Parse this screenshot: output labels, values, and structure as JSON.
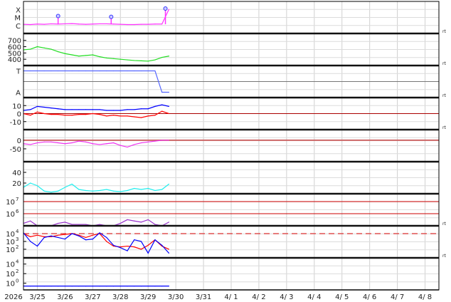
{
  "chart_data": {
    "type": "line",
    "year_label": "2026",
    "x_ticks": [
      "3/25",
      "3/26",
      "3/27",
      "3/28",
      "3/29",
      "3/30",
      "3/31",
      "4/ 1",
      "4/ 2",
      "4/ 3",
      "4/ 4",
      "4/ 5",
      "4/ 6",
      "4/ 7",
      "4/ 8"
    ],
    "x_range": [
      "2026-03-24T12",
      "2026-04-08T12"
    ],
    "grid": true,
    "times": [
      "2026-03-24T12",
      "2026-03-24T18",
      "2026-03-25T00",
      "2026-03-25T06",
      "2026-03-25T12",
      "2026-03-25T18",
      "2026-03-26T00",
      "2026-03-26T06",
      "2026-03-26T12",
      "2026-03-26T18",
      "2026-03-27T00",
      "2026-03-27T06",
      "2026-03-27T12",
      "2026-03-27T18",
      "2026-03-28T00",
      "2026-03-28T06",
      "2026-03-28T12",
      "2026-03-28T18",
      "2026-03-29T00",
      "2026-03-29T06",
      "2026-03-29T12",
      "2026-03-29T18"
    ],
    "panels": [
      {
        "id": "xray",
        "scale": "log",
        "ylim": [
          -7,
          -3
        ],
        "tick_labels": [
          {
            "label": "X",
            "value": -4
          },
          {
            "label": "M",
            "value": -5
          },
          {
            "label": "C",
            "value": -6
          }
        ],
        "right_label": "rt",
        "series": [
          {
            "color": "#ff33ff",
            "values": [
              1.4e-06,
              1.3e-06,
              1.5e-06,
              1.4e-06,
              1.6e-06,
              1.5e-06,
              1.6e-06,
              1.7e-06,
              1.5e-06,
              1.4e-06,
              1.5e-06,
              1.6e-06,
              1.6e-06,
              1.5e-06,
              1.4e-06,
              1.3e-06,
              1.3e-06,
              1.4e-06,
              1.4e-06,
              1.5e-06,
              1.5e-06,
              0.0001
            ]
          }
        ],
        "flares": [
          {
            "time": "2026-03-25T18",
            "flux": 1.5e-05
          },
          {
            "time": "2026-03-27T16",
            "flux": 1.2e-05
          },
          {
            "time": "2026-03-29T15",
            "flux": 0.00013
          }
        ]
      },
      {
        "id": "speed",
        "scale": "linear",
        "ylim": [
          300,
          810
        ],
        "ticks": [
          400,
          500,
          600,
          700
        ],
        "right_label": "rt",
        "series": [
          {
            "color": "#22dd22",
            "values": [
              550,
              560,
              600,
              580,
              560,
              520,
              490,
              470,
              450,
              460,
              470,
              440,
              420,
              410,
              400,
              390,
              380,
              375,
              370,
              390,
              430,
              450
            ]
          }
        ]
      },
      {
        "id": "sector",
        "scale": "category",
        "tick_labels": [
          {
            "label": "T",
            "value": 1
          },
          {
            "label": "A",
            "value": -1
          }
        ],
        "ylim": [
          -1.5,
          1.5
        ],
        "right_label": "rt",
        "series": [
          {
            "color": "#5566ff",
            "values": [
              1,
              1,
              1,
              1,
              1,
              1,
              1,
              1,
              1,
              1,
              1,
              1,
              1,
              1,
              1,
              1,
              1,
              1,
              1,
              1,
              -1,
              -1
            ]
          }
        ]
      },
      {
        "id": "bfield",
        "scale": "linear",
        "ylim": [
          -20,
          20
        ],
        "ticks": [
          10,
          0,
          -10
        ],
        "zero_line": "#aa0000",
        "right_label": "rt",
        "series": [
          {
            "color": "#0000ff",
            "values": [
              4,
              5,
              9,
              8,
              7,
              6,
              5,
              5,
              5,
              5,
              5,
              5,
              4,
              4,
              4,
              5,
              5,
              6,
              6,
              9,
              11,
              9
            ]
          },
          {
            "color": "#ff0000",
            "values": [
              0,
              -2,
              2,
              0,
              -1,
              -1,
              -2,
              -2,
              -1,
              -1,
              0,
              -1,
              -3,
              -2,
              -3,
              -3,
              -4,
              -5,
              -3,
              -2,
              3,
              0
            ]
          }
        ]
      },
      {
        "id": "dst",
        "scale": "linear",
        "ylim": [
          -125,
          62
        ],
        "ticks": [
          0,
          -50
        ],
        "zero_line": "#cc6666",
        "series": [
          {
            "color": "#ee33ee",
            "values": [
              -20,
              -25,
              -15,
              -10,
              -10,
              -15,
              -20,
              -15,
              -5,
              -10,
              -20,
              -25,
              -20,
              -15,
              -30,
              -40,
              -25,
              -15,
              -10,
              -5,
              0,
              0
            ]
          }
        ]
      },
      {
        "id": "index",
        "scale": "linear",
        "ylim": [
          0,
          60
        ],
        "ticks": [
          40,
          20
        ],
        "series": [
          {
            "color": "#22eeee",
            "values": [
              12,
              20,
              15,
              5,
              3,
              5,
              12,
              18,
              8,
              6,
              5,
              6,
              8,
              5,
              4,
              6,
              10,
              8,
              10,
              6,
              8,
              18
            ]
          }
        ]
      },
      {
        "id": "electrons",
        "scale": "log",
        "ylim": [
          5,
          7.65
        ],
        "ticks": [
          7,
          6
        ],
        "thresholds": [
          7,
          6
        ],
        "right_label": "rt",
        "series": [
          {
            "color": "#9933cc",
            "values": [
              160000.0,
              250000.0,
              100000.0,
              100000.0,
              100000.0,
              160000.0,
              200000.0,
              130000.0,
              130000.0,
              130000.0,
              100000.0,
              130000.0,
              100000.0,
              100000.0,
              160000.0,
              320000.0,
              250000.0,
              200000.0,
              320000.0,
              130000.0,
              100000.0,
              200000.0
            ]
          }
        ]
      },
      {
        "id": "protons",
        "scale": "log",
        "ylim": [
          0.9,
          5
        ],
        "ticks": [
          4,
          3,
          2
        ],
        "dashed_threshold": 4,
        "right_label": "rt",
        "series": [
          {
            "color": "#ff0000",
            "values": [
              10000.0,
              4000,
              6300,
              4000,
              4000,
              6300,
              7900,
              10000.0,
              6300,
              3200,
              6300,
              10000.0,
              1000,
              250,
              200,
              250,
              200,
              100,
              320,
              1600,
              250,
              100
            ]
          },
          {
            "color": "#0000ff",
            "values": [
              12600,
              1000,
              250,
              3200,
              5000,
              3200,
              2000,
              10000.0,
              5000,
              1600,
              2000,
              12600,
              3200,
              320,
              160,
              63,
              1600,
              1000,
              32,
              1600,
              320,
              32
            ]
          }
        ]
      },
      {
        "id": "neutrons",
        "scale": "log",
        "ylim": [
          -1.4,
          5.3
        ],
        "ticks": [
          4,
          2,
          0
        ],
        "series": [
          {
            "color": "#0000ff",
            "values": [
              0.25,
              0.25,
              0.25,
              0.25,
              0.25,
              0.25,
              0.25,
              0.25,
              0.25,
              0.25,
              0.25,
              0.25,
              0.25,
              0.25,
              0.25,
              0.25,
              0.25,
              0.25,
              0.25,
              0.25,
              0.25,
              0.25
            ]
          }
        ]
      }
    ]
  }
}
